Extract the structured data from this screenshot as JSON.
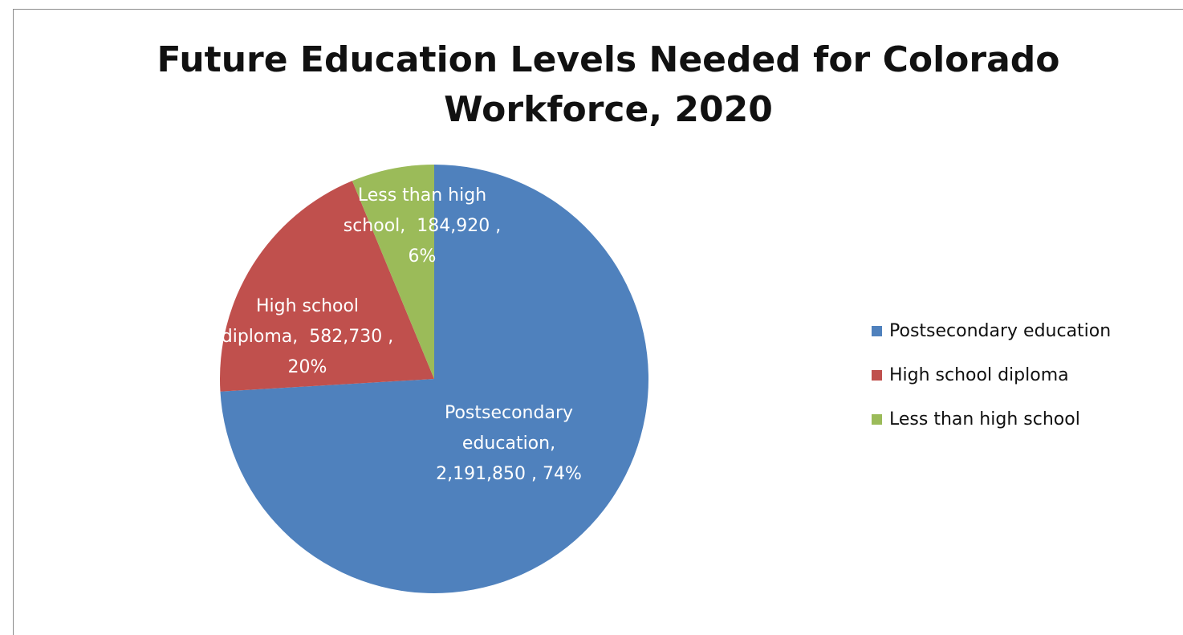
{
  "chart_data": {
    "type": "pie",
    "title": "Future Education Levels Needed for Colorado Workforce, 2020",
    "title_lines": [
      "Future Education Levels Needed for Colorado",
      "Workforce, 2020"
    ],
    "slices": [
      {
        "category": "Postsecondary education",
        "value": 2191850,
        "percent": 74,
        "color": "#4f81bd",
        "label_lines": [
          "Postsecondary",
          "education,",
          "2,191,850 , 74%"
        ]
      },
      {
        "category": "High school diploma",
        "value": 582730,
        "percent": 20,
        "color": "#c0504d",
        "label_lines": [
          "High school",
          "diploma,  582,730 ,",
          "20%"
        ]
      },
      {
        "category": "Less than high school",
        "value": 184920,
        "percent": 6,
        "color": "#9bbb59",
        "label_lines": [
          "Less than high",
          "school,  184,920 ,",
          "6%"
        ]
      }
    ],
    "legend": {
      "position": "right",
      "entries": [
        "Postsecondary education",
        "High school diploma",
        "Less than high school"
      ]
    },
    "start_angle": "12 o'clock",
    "direction": "clockwise"
  }
}
